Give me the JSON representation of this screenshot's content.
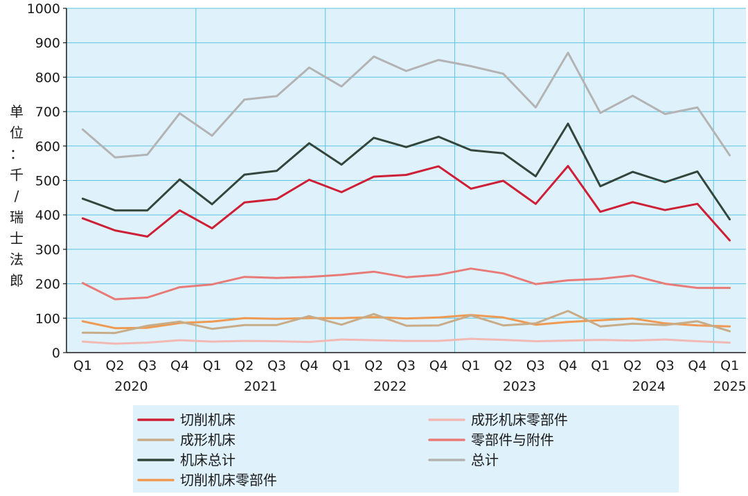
{
  "chart_data": {
    "type": "line",
    "ylabel": "单位：千 / 瑞士法郎",
    "ylabel_chars": [
      "单",
      "位",
      "：",
      "千",
      "/",
      "瑞",
      "士",
      "法",
      "郎"
    ],
    "ylim": [
      0,
      1000
    ],
    "yticks": [
      "0",
      "100",
      "200",
      "300",
      "400",
      "500",
      "600",
      "700",
      "800",
      "900",
      "1000"
    ],
    "categories": [
      "Q1",
      "Q2",
      "Q3",
      "Q4",
      "Q1",
      "Q2",
      "Q3",
      "Q4",
      "Q1",
      "Q2",
      "Q3",
      "Q4",
      "Q1",
      "Q2",
      "Q3",
      "Q4",
      "Q1",
      "Q2",
      "Q3",
      "Q4",
      "Q1"
    ],
    "years": [
      {
        "label": "2020",
        "start": 0,
        "end": 3
      },
      {
        "label": "2021",
        "start": 4,
        "end": 7
      },
      {
        "label": "2022",
        "start": 8,
        "end": 11
      },
      {
        "label": "2023",
        "start": 12,
        "end": 15
      },
      {
        "label": "2024",
        "start": 16,
        "end": 19
      },
      {
        "label": "2025",
        "start": 20,
        "end": 20
      }
    ],
    "grid": true,
    "legend_position": "bottom",
    "background_color": "#dff1fb",
    "grid_color": "#5bc4e2",
    "series": [
      {
        "name": "总计",
        "color": "#b3b3b3",
        "values": [
          648,
          567,
          575,
          695,
          630,
          735,
          745,
          828,
          773,
          860,
          818,
          850,
          832,
          810,
          712,
          871,
          696,
          746,
          693,
          712,
          573
        ]
      },
      {
        "name": "零部件与附件",
        "color": "#e87b78",
        "values": [
          202,
          155,
          160,
          190,
          198,
          220,
          217,
          220,
          226,
          235,
          219,
          226,
          244,
          230,
          199,
          210,
          214,
          224,
          200,
          188,
          188
        ]
      },
      {
        "name": "成形机床零部件",
        "color": "#f2b8b4",
        "values": [
          32,
          26,
          29,
          36,
          32,
          34,
          33,
          31,
          38,
          36,
          34,
          34,
          40,
          37,
          33,
          35,
          37,
          35,
          38,
          33,
          29
        ]
      },
      {
        "name": "切削机床零部件",
        "color": "#ef9a52",
        "values": [
          91,
          71,
          72,
          86,
          90,
          100,
          98,
          100,
          100,
          103,
          99,
          102,
          109,
          102,
          81,
          89,
          94,
          99,
          85,
          79,
          76
        ]
      },
      {
        "name": "成形机床",
        "color": "#c8ac88",
        "values": [
          58,
          57,
          78,
          90,
          69,
          80,
          80,
          106,
          81,
          112,
          78,
          79,
          108,
          79,
          85,
          121,
          76,
          84,
          80,
          91,
          62
        ]
      },
      {
        "name": "机床总计",
        "color": "#34463c",
        "values": [
          447,
          413,
          413,
          503,
          431,
          517,
          528,
          608,
          546,
          624,
          597,
          627,
          588,
          579,
          512,
          665,
          483,
          525,
          495,
          526,
          387
        ]
      },
      {
        "name": "切削机床",
        "color": "#cd1f35",
        "values": [
          390,
          355,
          337,
          413,
          361,
          436,
          446,
          502,
          466,
          511,
          516,
          541,
          476,
          499,
          432,
          542,
          409,
          437,
          414,
          432,
          326
        ]
      }
    ],
    "legend_order": [
      "切削机床",
      "成形机床零部件",
      "成形机床",
      "零部件与附件",
      "机床总计",
      "总计",
      "切削机床零部件"
    ]
  }
}
